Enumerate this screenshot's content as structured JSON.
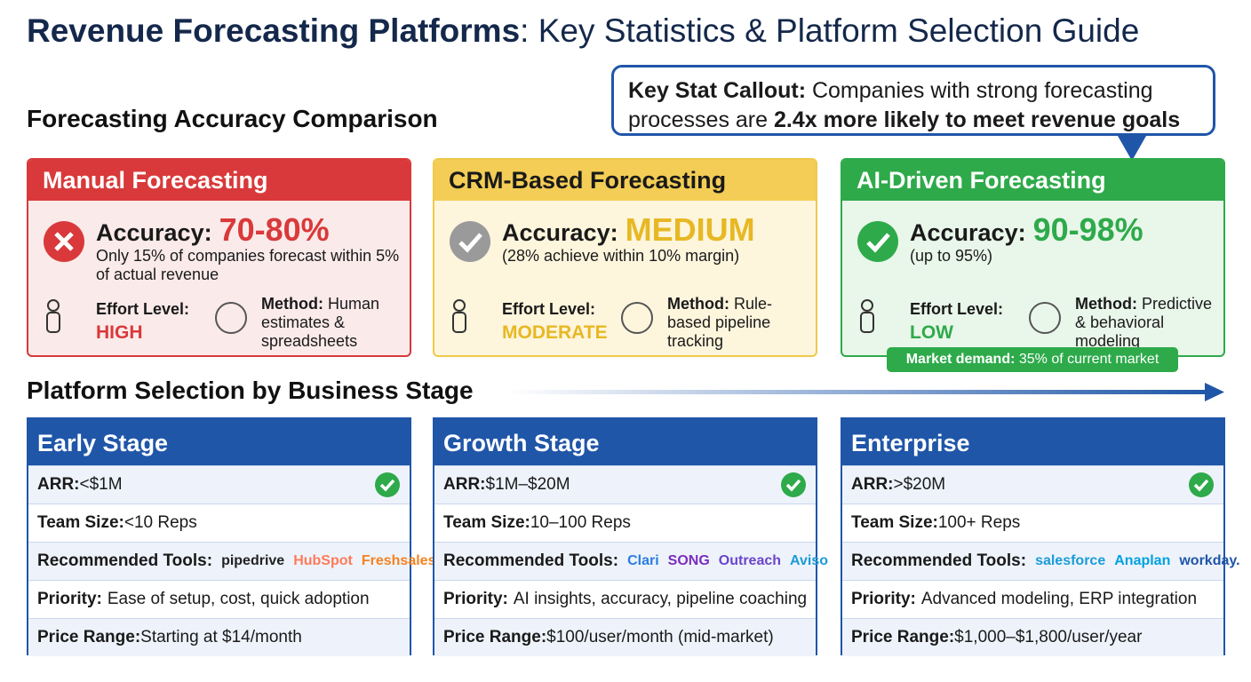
{
  "header": {
    "title_bold": "Revenue Forecasting Platforms",
    "title_rest": ": Key Statistics & Platform Selection Guide"
  },
  "callout": {
    "label": "Key Stat Callout:",
    "text": " Companies with strong forecasting processes are ",
    "highlight": "2.4x more likely to meet revenue goals"
  },
  "accuracy_section": {
    "heading": "Forecasting Accuracy Comparison",
    "cards": [
      {
        "title": "Manual Forecasting",
        "accuracy_label": "Accuracy:",
        "accuracy_value": "70-80%",
        "note": "Only 15% of companies forecast within 5% of actual revenue",
        "effort_label": "Effort Level:",
        "effort_value": "HIGH",
        "method_label": "Method:",
        "method_value": " Human estimates & spreadsheets"
      },
      {
        "title": "CRM-Based Forecasting",
        "accuracy_label": "Accuracy:",
        "accuracy_value": "MEDIUM",
        "note": "(28% achieve within 10% margin)",
        "effort_label": "Effort Level:",
        "effort_value": "MODERATE",
        "method_label": "Method:",
        "method_value": " Rule-based pipeline tracking"
      },
      {
        "title": "AI-Driven Forecasting",
        "accuracy_label": "Accuracy:",
        "accuracy_value": "90-98%",
        "note": "(up to 95%)",
        "effort_label": "Effort Level:",
        "effort_value": "LOW",
        "method_label": "Method:",
        "method_value": " Predictive & behavioral modeling"
      }
    ],
    "market": {
      "label": "Market demand:",
      "value": " 35% of current market"
    }
  },
  "stage_section": {
    "heading": "Platform Selection by Business Stage",
    "stages": [
      {
        "title": "Early Stage",
        "rows": [
          {
            "label": "ARR:",
            "value": " <$1M"
          },
          {
            "label": "Team Size:",
            "value": " <10 Reps"
          },
          {
            "label": "Recommended Tools:",
            "tools": [
              "pipedrive",
              "HubSpot",
              "Freshsales"
            ]
          },
          {
            "label": "Priority:",
            "value": "Ease of setup, cost, quick adoption"
          },
          {
            "label": "Price Range:",
            "value": " Starting at $14/month"
          }
        ]
      },
      {
        "title": "Growth Stage",
        "rows": [
          {
            "label": "ARR:",
            "value": " $1M–$20M"
          },
          {
            "label": "Team Size:",
            "value": " 10–100 Reps"
          },
          {
            "label": "Recommended Tools:",
            "tools": [
              "Clari",
              "SONG",
              "Outreach",
              "Aviso"
            ]
          },
          {
            "label": "Priority:",
            "value": "AI insights, accuracy, pipeline coaching"
          },
          {
            "label": "Price Range:",
            "value": " $100/user/month (mid-market)"
          }
        ]
      },
      {
        "title": "Enterprise",
        "rows": [
          {
            "label": "ARR:",
            "value": " >$20M"
          },
          {
            "label": "Team Size:",
            "value": " 100+ Reps"
          },
          {
            "label": "Recommended Tools:",
            "tools": [
              "salesforce",
              "Anaplan",
              "workday."
            ]
          },
          {
            "label": "Priority:",
            "value": "Advanced modeling, ERP integration"
          },
          {
            "label": "Price Range:",
            "value": " $1,000–$1,800/user/year"
          }
        ]
      }
    ]
  }
}
